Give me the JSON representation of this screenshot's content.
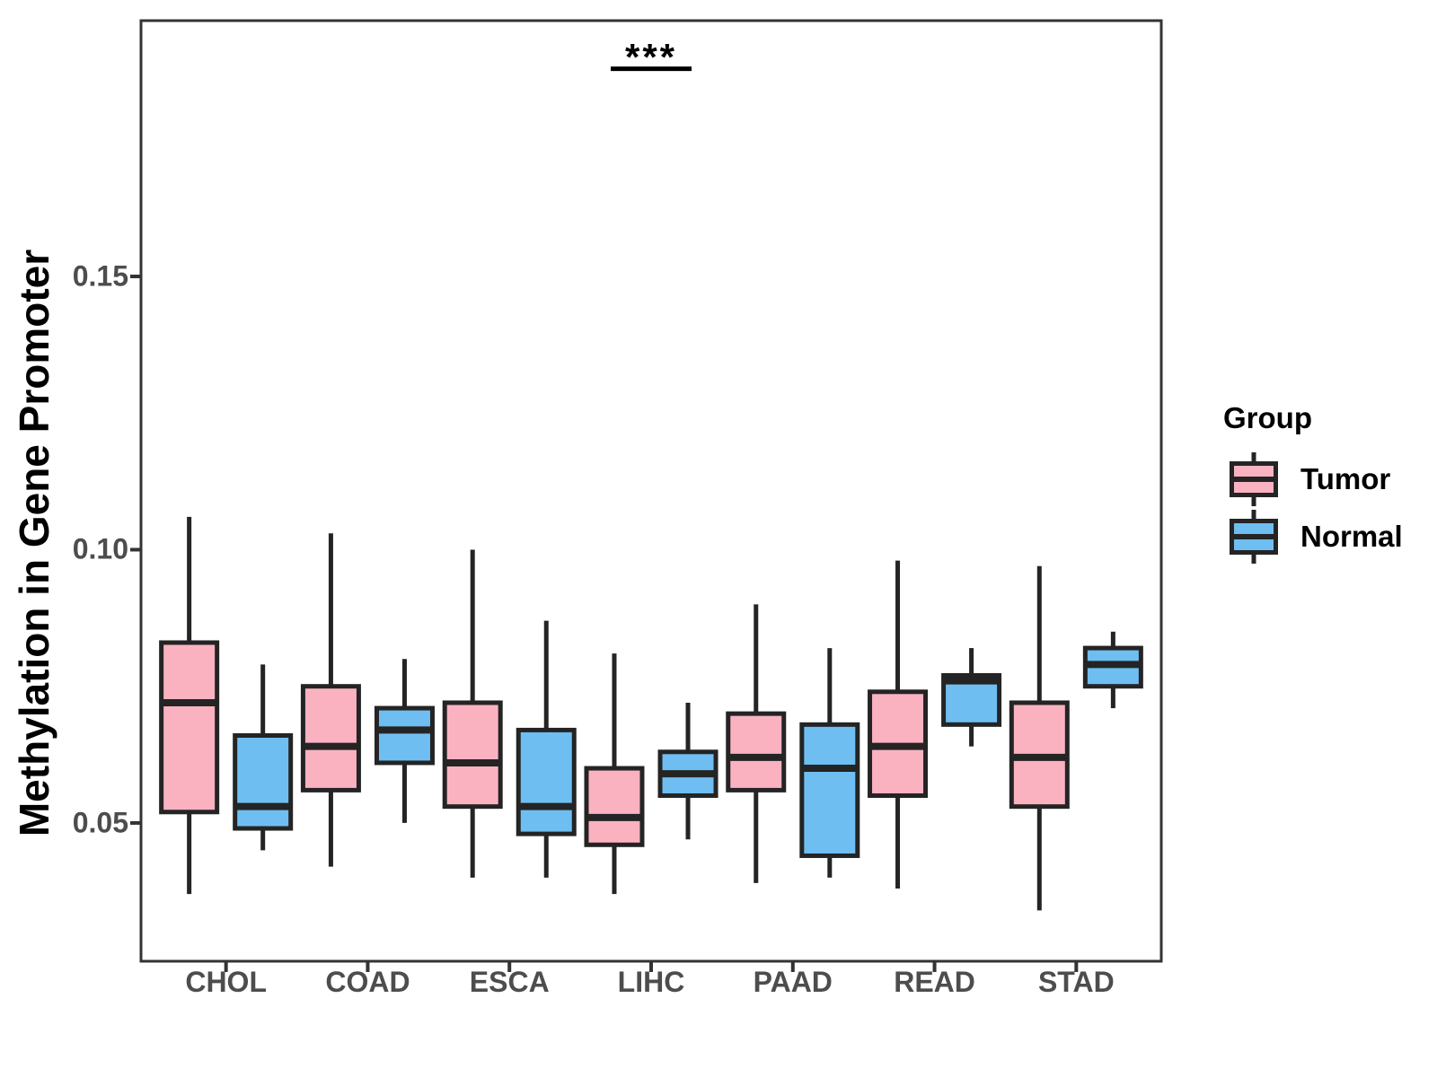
{
  "figure_colors": {
    "tumor_fill": "#FAB2C1",
    "normal_fill": "#6EBEF2",
    "box_stroke": "#242424",
    "panel_border": "#333333",
    "tick_color": "#333333",
    "axis_text_color": "#4d4d4d"
  },
  "legend": {
    "title": "Group",
    "items": [
      {
        "label": "Tumor",
        "color": "#FAB2C1"
      },
      {
        "label": "Normal",
        "color": "#6EBEF2"
      }
    ]
  },
  "chart_data": {
    "type": "grouped_boxplot",
    "title": "",
    "xlabel": "",
    "ylabel": "Methylation in Gene Promoter",
    "categories": [
      "CHOL",
      "COAD",
      "ESCA",
      "LIHC",
      "PAAD",
      "READ",
      "STAD"
    ],
    "y_ticks": [
      {
        "label": "0.05",
        "value": 0.05
      },
      {
        "label": "0.10",
        "value": 0.1
      },
      {
        "label": "0.15",
        "value": 0.15
      }
    ],
    "ylim": [
      0.0247,
      0.1968
    ],
    "grid": false,
    "legend_position": "right",
    "annotation": {
      "text": "***",
      "category": "LIHC",
      "y_value": 0.188
    },
    "series": [
      {
        "name": "Tumor",
        "color": "#FAB2C1",
        "boxes": [
          {
            "category": "CHOL",
            "min": 0.037,
            "q1": 0.052,
            "median": 0.072,
            "q3": 0.083,
            "max": 0.106
          },
          {
            "category": "COAD",
            "min": 0.042,
            "q1": 0.056,
            "median": 0.064,
            "q3": 0.075,
            "max": 0.103
          },
          {
            "category": "ESCA",
            "min": 0.04,
            "q1": 0.053,
            "median": 0.061,
            "q3": 0.072,
            "max": 0.1
          },
          {
            "category": "LIHC",
            "min": 0.037,
            "q1": 0.046,
            "median": 0.051,
            "q3": 0.06,
            "max": 0.081
          },
          {
            "category": "PAAD",
            "min": 0.039,
            "q1": 0.056,
            "median": 0.062,
            "q3": 0.07,
            "max": 0.09
          },
          {
            "category": "READ",
            "min": 0.038,
            "q1": 0.055,
            "median": 0.064,
            "q3": 0.074,
            "max": 0.098
          },
          {
            "category": "STAD",
            "min": 0.034,
            "q1": 0.053,
            "median": 0.062,
            "q3": 0.072,
            "max": 0.097
          }
        ]
      },
      {
        "name": "Normal",
        "color": "#6EBEF2",
        "boxes": [
          {
            "category": "CHOL",
            "min": 0.045,
            "q1": 0.049,
            "median": 0.053,
            "q3": 0.066,
            "max": 0.079
          },
          {
            "category": "COAD",
            "min": 0.05,
            "q1": 0.061,
            "median": 0.067,
            "q3": 0.071,
            "max": 0.08
          },
          {
            "category": "ESCA",
            "min": 0.04,
            "q1": 0.048,
            "median": 0.053,
            "q3": 0.067,
            "max": 0.087
          },
          {
            "category": "LIHC",
            "min": 0.047,
            "q1": 0.055,
            "median": 0.059,
            "q3": 0.063,
            "max": 0.072
          },
          {
            "category": "PAAD",
            "min": 0.04,
            "q1": 0.044,
            "median": 0.06,
            "q3": 0.068,
            "max": 0.082
          },
          {
            "category": "READ",
            "min": 0.064,
            "q1": 0.068,
            "median": 0.076,
            "q3": 0.077,
            "max": 0.082
          },
          {
            "category": "STAD",
            "min": 0.071,
            "q1": 0.075,
            "median": 0.079,
            "q3": 0.082,
            "max": 0.085
          }
        ]
      }
    ]
  }
}
